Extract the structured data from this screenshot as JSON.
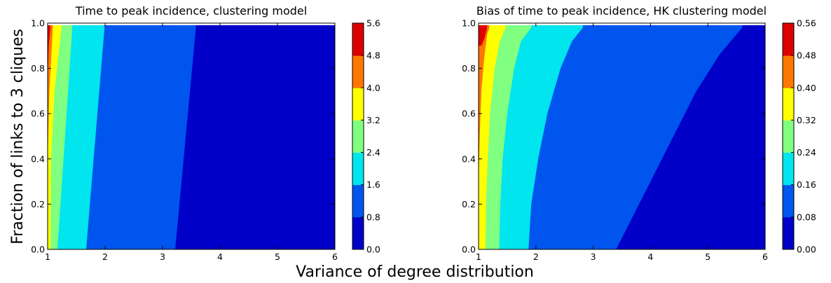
{
  "figure": {
    "xlabel": "Variance of degree distribution",
    "ylabel": "Fraction of links to 3 cliques"
  },
  "chart_data": [
    {
      "type": "heatmap",
      "subtype": "filled-contour",
      "title": "Time to peak incidence, clustering model",
      "xlabel": "",
      "ylabel": "",
      "xlim": [
        1,
        6
      ],
      "ylim": [
        0,
        1
      ],
      "x_ticks": [
        "1",
        "2",
        "3",
        "4",
        "5",
        "6"
      ],
      "y_ticks": [
        "0.0",
        "0.2",
        "0.4",
        "0.6",
        "0.8",
        "1.0"
      ],
      "colorbar": {
        "levels": [
          0.0,
          0.8,
          1.6,
          2.4,
          3.2,
          4.0,
          4.8,
          5.6
        ],
        "tick_labels": [
          "0.0",
          "0.8",
          "1.6",
          "2.4",
          "3.2",
          "4.0",
          "4.8",
          "5.6"
        ],
        "colors": [
          "#0000c8",
          "#0055ee",
          "#00e5ee",
          "#80ff80",
          "#ffff00",
          "#ff7700",
          "#dd0000"
        ]
      },
      "contours": [
        {
          "level": 0.8,
          "points": [
            [
              3.22,
              0.0
            ],
            [
              3.58,
              0.98
            ]
          ]
        },
        {
          "level": 1.6,
          "points": [
            [
              1.67,
              0.0
            ],
            [
              1.99,
              0.98
            ]
          ]
        },
        {
          "level": 2.4,
          "points": [
            [
              1.17,
              0.0
            ],
            [
              1.43,
              0.98
            ]
          ]
        },
        {
          "level": 3.2,
          "points": [
            [
              1.05,
              0.0
            ],
            [
              1.06,
              0.4
            ],
            [
              1.12,
              0.7
            ],
            [
              1.24,
              0.98
            ]
          ]
        },
        {
          "level": 4.0,
          "points": [
            [
              1.0,
              0.4
            ],
            [
              1.03,
              0.7
            ],
            [
              1.09,
              0.98
            ]
          ]
        },
        {
          "level": 4.8,
          "points": [
            [
              1.0,
              0.75
            ],
            [
              1.02,
              0.9
            ],
            [
              1.05,
              0.98
            ]
          ]
        }
      ]
    },
    {
      "type": "heatmap",
      "subtype": "filled-contour",
      "title": "Bias of time to peak incidence, HK clustering model",
      "xlabel": "",
      "ylabel": "",
      "xlim": [
        1,
        6
      ],
      "ylim": [
        0,
        1
      ],
      "x_ticks": [
        "1",
        "2",
        "3",
        "4",
        "5",
        "6"
      ],
      "y_ticks": [
        "0.0",
        "0.2",
        "0.4",
        "0.6",
        "0.8",
        "1.0"
      ],
      "colorbar": {
        "levels": [
          0.0,
          0.08,
          0.16,
          0.24,
          0.32,
          0.4,
          0.48,
          0.56
        ],
        "tick_labels": [
          "0.00",
          "0.08",
          "0.16",
          "0.24",
          "0.32",
          "0.40",
          "0.48",
          "0.56"
        ],
        "colors": [
          "#0000c8",
          "#0055ee",
          "#00e5ee",
          "#80ff80",
          "#ffff00",
          "#ff7700",
          "#dd0000"
        ]
      },
      "contours": [
        {
          "level": 0.08,
          "points": [
            [
              3.4,
              0.0
            ],
            [
              3.7,
              0.15
            ],
            [
              4.0,
              0.3
            ],
            [
              4.4,
              0.5
            ],
            [
              4.8,
              0.7
            ],
            [
              5.2,
              0.86
            ],
            [
              5.6,
              0.98
            ]
          ]
        },
        {
          "level": 0.16,
          "points": [
            [
              1.87,
              0.0
            ],
            [
              1.92,
              0.2
            ],
            [
              2.04,
              0.4
            ],
            [
              2.2,
              0.6
            ],
            [
              2.43,
              0.8
            ],
            [
              2.63,
              0.92
            ],
            [
              2.82,
              0.98
            ]
          ]
        },
        {
          "level": 0.24,
          "points": [
            [
              1.36,
              0.0
            ],
            [
              1.38,
              0.2
            ],
            [
              1.42,
              0.4
            ],
            [
              1.5,
              0.6
            ],
            [
              1.62,
              0.8
            ],
            [
              1.74,
              0.92
            ],
            [
              1.92,
              0.98
            ]
          ]
        },
        {
          "level": 0.32,
          "points": [
            [
              1.12,
              0.0
            ],
            [
              1.13,
              0.2
            ],
            [
              1.16,
              0.4
            ],
            [
              1.2,
              0.6
            ],
            [
              1.28,
              0.8
            ],
            [
              1.37,
              0.92
            ],
            [
              1.47,
              0.98
            ]
          ]
        },
        {
          "level": 0.4,
          "points": [
            [
              1.0,
              0.3
            ],
            [
              1.02,
              0.5
            ],
            [
              1.05,
              0.7
            ],
            [
              1.1,
              0.85
            ],
            [
              1.15,
              0.95
            ],
            [
              1.19,
              0.98
            ]
          ]
        },
        {
          "level": 0.48,
          "points": [
            [
              1.0,
              0.9
            ],
            [
              1.05,
              0.9
            ],
            [
              1.1,
              0.93
            ],
            [
              1.15,
              0.98
            ]
          ]
        }
      ]
    }
  ]
}
